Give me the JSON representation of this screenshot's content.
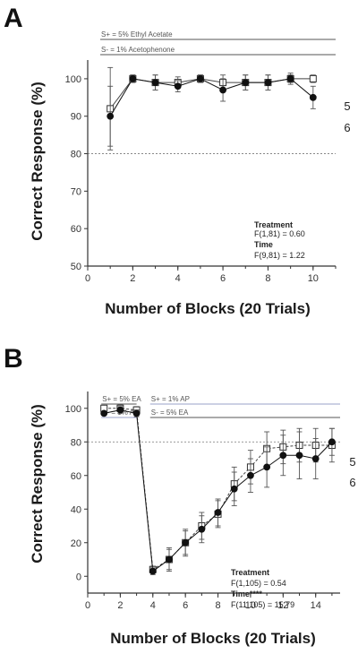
{
  "chart_data": [
    {
      "type": "line",
      "panel": "A",
      "xlabel": "Number of Blocks (20 Trials)",
      "ylabel": "Correct Response (%)",
      "xlim": [
        0,
        11
      ],
      "ylim": [
        50,
        105
      ],
      "xticks": [
        0,
        2,
        4,
        6,
        8,
        10
      ],
      "yticks": [
        50,
        60,
        70,
        80,
        90,
        100
      ],
      "reference_line": 80,
      "stimulus_bars": [
        {
          "text": "S+ = 5% Ethyl Acetate",
          "from": 1,
          "to": 11
        },
        {
          "text": "S- = 1% Acetophenone",
          "from": 1,
          "to": 11
        }
      ],
      "series": [
        {
          "name": "5",
          "marker": "open-square",
          "x": [
            1,
            2,
            3,
            4,
            5,
            6,
            7,
            8,
            9,
            10
          ],
          "y": [
            92,
            100,
            99,
            99,
            100,
            99,
            99,
            99,
            100,
            100
          ],
          "err": [
            11,
            1,
            2,
            1.5,
            1,
            2,
            2,
            2,
            1,
            1
          ]
        },
        {
          "name": "6",
          "marker": "filled-circle",
          "x": [
            1,
            2,
            3,
            4,
            5,
            6,
            7,
            8,
            9,
            10
          ],
          "y": [
            90,
            100,
            99,
            98,
            100,
            97,
            99,
            99,
            100,
            95
          ],
          "err": [
            8,
            1,
            2,
            1.5,
            1,
            3,
            2,
            2,
            1.5,
            3
          ]
        }
      ],
      "stats": [
        "Treatment",
        "F(1,81) = 0.60",
        "Time",
        "F(9,81) = 1.22"
      ]
    },
    {
      "type": "line",
      "panel": "B",
      "xlabel": "Number of Blocks (20 Trials)",
      "ylabel": "Correct Response (%)",
      "xlim": [
        0,
        15.5
      ],
      "ylim": [
        -10,
        110
      ],
      "xticks": [
        0,
        2,
        4,
        6,
        8,
        10,
        12,
        14
      ],
      "yticks": [
        0,
        20,
        40,
        60,
        80,
        100
      ],
      "reference_line": 80,
      "stimulus_bars": [
        {
          "text": "S+ = 5% EA",
          "from": 1,
          "to": 3
        },
        {
          "text": "S- = 1% AP",
          "from": 1,
          "to": 3
        },
        {
          "text": "S+ = 1% AP",
          "from": 4,
          "to": 15.5
        },
        {
          "text": "S- = 5% EA",
          "from": 4,
          "to": 15.5
        }
      ],
      "series": [
        {
          "name": "5",
          "marker": "open-square",
          "x": [
            1,
            2,
            3,
            4,
            5,
            6,
            7,
            8,
            9,
            10,
            11,
            12,
            13,
            14,
            15
          ],
          "y": [
            100,
            100,
            99,
            4,
            10,
            20,
            30,
            37,
            55,
            65,
            76,
            77,
            78,
            78,
            78
          ],
          "err": [
            1,
            2,
            2,
            2,
            7,
            8,
            8,
            8,
            10,
            10,
            10,
            10,
            10,
            10,
            10
          ]
        },
        {
          "name": "6",
          "marker": "filled-circle",
          "x": [
            1,
            2,
            3,
            4,
            5,
            6,
            7,
            8,
            9,
            10,
            11,
            12,
            13,
            14,
            15
          ],
          "y": [
            97,
            99,
            97,
            3,
            10,
            20,
            28,
            38,
            52,
            60,
            65,
            72,
            72,
            70,
            80
          ],
          "err": [
            1,
            2,
            2,
            2,
            6,
            7,
            8,
            8,
            10,
            10,
            12,
            12,
            14,
            12,
            8
          ]
        }
      ],
      "stats": [
        "Treatment",
        "F(1,105) = 0.54",
        "Time****",
        "F(11,105) = 15.79"
      ]
    }
  ],
  "panels": {
    "a_letter": "A",
    "b_letter": "B"
  }
}
